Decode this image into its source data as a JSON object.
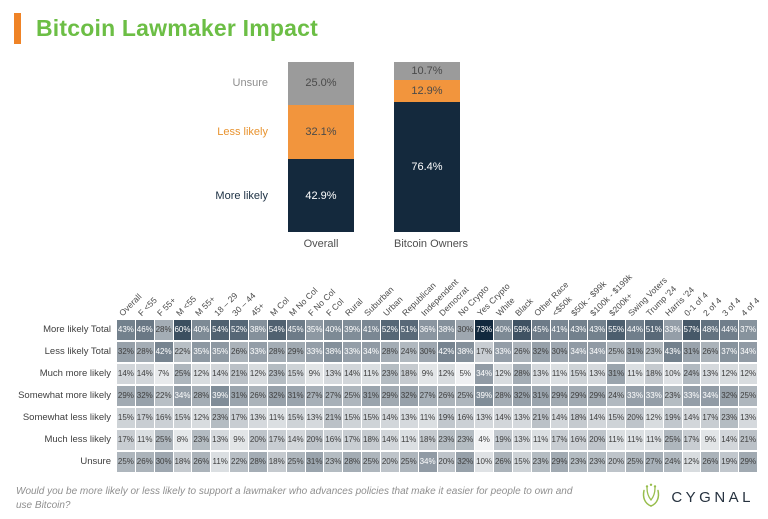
{
  "title": "Bitcoin Lawmaker Impact",
  "colors": {
    "green": "#6CBE45",
    "accent_orange": "#EF8326",
    "navy": "#14293D",
    "orange": "#F2953D",
    "gray": "#9B9B9B",
    "heatmap_dark": "#12293E"
  },
  "chart_data": [
    {
      "type": "bar",
      "subtype": "stacked-100-percent",
      "categories": [
        "Overall",
        "Bitcoin Owners"
      ],
      "series": [
        {
          "name": "More likely",
          "values": [
            42.9,
            76.4
          ],
          "color": "#14293D",
          "label_color": "#ffffff",
          "legend_color": "#1b2f42"
        },
        {
          "name": "Less likely",
          "values": [
            32.1,
            12.9
          ],
          "color": "#F2953D",
          "label_color": "#4a4a4a",
          "legend_color": "#E8932F"
        },
        {
          "name": "Unsure",
          "values": [
            25.0,
            10.7
          ],
          "color": "#9B9B9B",
          "label_color": "#4a4a4a",
          "legend_color": "#8e8e8e"
        }
      ],
      "stack_order_top_to_bottom": [
        "Unsure",
        "Less likely",
        "More likely"
      ],
      "legend_position": "left",
      "grid": false
    },
    {
      "type": "heatmap",
      "columns": [
        "Overall",
        "F <55",
        "F 55+",
        "M <55",
        "M 55+",
        "18 – 29",
        "30 – 44",
        "45+",
        "M Col",
        "M No Col",
        "F No Col",
        "F Col",
        "Rural",
        "Suburban",
        "Urban",
        "Republican",
        "Independent",
        "Democrat",
        "No Crypto",
        "Yes Crypto",
        "White",
        "Black",
        "Other Race",
        "<$50k",
        "$50k - $99k",
        "$100k - $199k",
        "$200k+",
        "Swing Voters",
        "Trump '24",
        "Harris '24",
        "0-1 of 4",
        "2 of 4",
        "3 of 4",
        "4 of 4"
      ],
      "value_unit": "%",
      "rows": [
        {
          "label": "More likely Total",
          "values": [
            43,
            46,
            28,
            60,
            40,
            54,
            52,
            38,
            54,
            45,
            35,
            40,
            39,
            41,
            52,
            51,
            36,
            38,
            30,
            73,
            40,
            59,
            45,
            41,
            43,
            43,
            55,
            44,
            51,
            33,
            57,
            48,
            44,
            37
          ]
        },
        {
          "label": "Less likely Total",
          "values": [
            32,
            28,
            42,
            22,
            35,
            35,
            26,
            33,
            28,
            29,
            33,
            38,
            33,
            34,
            28,
            24,
            30,
            42,
            38,
            17,
            33,
            26,
            32,
            30,
            34,
            34,
            25,
            31,
            23,
            43,
            31,
            26,
            37,
            34
          ]
        },
        {
          "label": "Much more likely",
          "values": [
            14,
            14,
            7,
            25,
            12,
            14,
            21,
            12,
            23,
            15,
            9,
            13,
            14,
            11,
            23,
            18,
            9,
            12,
            5,
            34,
            12,
            28,
            13,
            11,
            15,
            13,
            31,
            11,
            18,
            10,
            24,
            13,
            12,
            12
          ]
        },
        {
          "label": "Somewhat more likely",
          "values": [
            29,
            32,
            22,
            34,
            28,
            39,
            31,
            26,
            32,
            31,
            27,
            27,
            25,
            31,
            29,
            32,
            27,
            26,
            25,
            39,
            28,
            32,
            31,
            29,
            29,
            29,
            24,
            33,
            33,
            23,
            33,
            34,
            32,
            25
          ]
        },
        {
          "label": "Somewhat less likely",
          "values": [
            15,
            17,
            16,
            15,
            12,
            23,
            17,
            13,
            11,
            15,
            13,
            21,
            15,
            15,
            14,
            13,
            11,
            19,
            16,
            13,
            14,
            13,
            21,
            14,
            18,
            14,
            15,
            20,
            12,
            19,
            14,
            17,
            23,
            13
          ]
        },
        {
          "label": "Much less likely",
          "values": [
            17,
            11,
            25,
            8,
            23,
            13,
            9,
            20,
            17,
            14,
            20,
            16,
            17,
            18,
            14,
            11,
            18,
            23,
            23,
            4,
            19,
            13,
            11,
            17,
            16,
            20,
            11,
            11,
            11,
            25,
            17,
            9,
            14,
            21
          ]
        },
        {
          "label": "Unsure",
          "values": [
            25,
            26,
            30,
            18,
            26,
            11,
            22,
            28,
            18,
            25,
            31,
            23,
            28,
            25,
            20,
            25,
            34,
            20,
            32,
            10,
            26,
            15,
            23,
            29,
            23,
            23,
            20,
            25,
            27,
            24,
            12,
            26,
            19,
            29
          ]
        }
      ]
    }
  ],
  "footer": {
    "question": "Would you be more likely or less likely to support a lawmaker who advances policies that make it easier for people to own and use Bitcoin?",
    "brand": "CYGNAL"
  }
}
